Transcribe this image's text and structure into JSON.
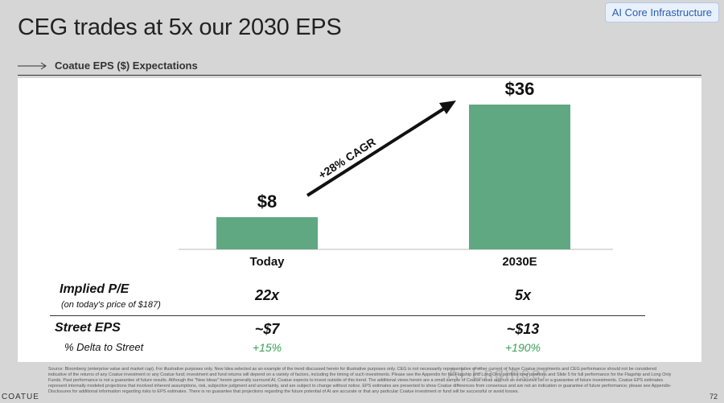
{
  "slide": {
    "title": "CEG trades at 5x our 2030 EPS",
    "badge": "AI Core Infrastructure",
    "section_label": "Coatue EPS ($) Expectations",
    "page_number": "72",
    "logo_text": "COATUE",
    "watermark": "AI Engineer"
  },
  "chart_data": {
    "type": "bar",
    "title": "Coatue EPS ($) Expectations",
    "categories": [
      "Today",
      "2030E"
    ],
    "values": [
      8,
      36
    ],
    "data_labels": [
      "$8",
      "$36"
    ],
    "ylim": [
      0,
      40
    ],
    "grid": false,
    "colors": {
      "bar": "#5fa882",
      "arrow": "#111111"
    },
    "annotation": "+28% CAGR"
  },
  "table": {
    "rows": [
      {
        "label": "Implied P/E",
        "sublabel": "(on today's price of $187)",
        "values": [
          "22x",
          "5x"
        ]
      },
      {
        "label": "Street EPS",
        "values": [
          "~$7",
          "~$13"
        ]
      },
      {
        "label": "% Delta to Street",
        "values": [
          "+15%",
          "+190%"
        ]
      }
    ]
  },
  "source_text": "Source: Bloomberg (enterprise value and market cap). For illustrative purposes only. New Idea selected as an example of the trend discussed herein for illustrative purposes only. CEG is not necessarily representative of other current or future Coatue investments and CEG performance should not be considered indicative of the returns of any Coatue investment or any Coatue fund; investment and fund returns will depend on a variety of factors, including the timing of such investments. Please see the Appendix for full Flagship and Long Only portfolio long positions and Slide 5 for full performance for the Flagship and Long Only Funds. Past performance is not a guarantee of future results. Although the \"New Ideas\" herein generally surround AI, Coatue expects to invest outside of this trend. The additional views herein are a small sample of Coatue ideas and not an exhaustive list or a guarantee of future investments. Coatue EPS estimates represent internally modeled projections that involved inherent assumptions, risk, subjective judgment and uncertainty, and are subject to change without notice. EPS estimates are presented to show Coatue differences from consensus and are not an indication or guarantee of future performance; please see Appendix-Disclosures for additional information regarding risks to EPS estimates. There is no guarantee that projections regarding the future potential of AI are accurate or that any particular Coatue investment or fund will be successful or avoid losses."
}
